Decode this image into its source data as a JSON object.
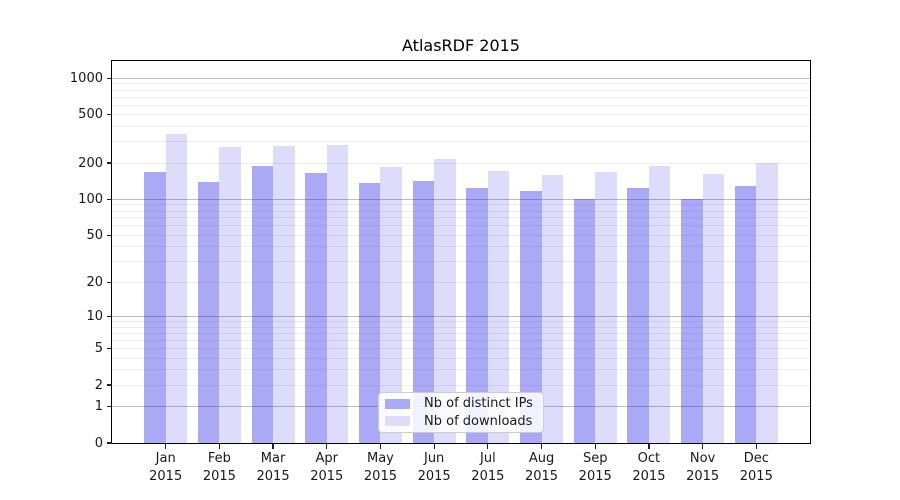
{
  "chart_data": {
    "type": "bar",
    "title": "AtlasRDF 2015",
    "categories": [
      "Jan",
      "Feb",
      "Mar",
      "Apr",
      "May",
      "Jun",
      "Jul",
      "Aug",
      "Sep",
      "Oct",
      "Nov",
      "Dec"
    ],
    "x_year": "2015",
    "series": [
      {
        "name": "Nb of distinct IPs",
        "values": [
          170,
          140,
          190,
          166,
          137,
          141,
          125,
          118,
          101,
          124,
          101,
          128
        ],
        "bar_color": "rgba(30,30,230,0.38)",
        "legend_color": "#aaaaf5"
      },
      {
        "name": "Nb of downloads",
        "values": [
          347,
          270,
          276,
          280,
          186,
          218,
          172,
          158,
          170,
          190,
          162,
          200
        ],
        "bar_color": "rgba(30,30,230,0.15)",
        "legend_color": "#ddddfb"
      }
    ],
    "yscale": "log1p",
    "ylim": [
      0,
      1388
    ],
    "yticks": [
      0,
      1,
      2,
      5,
      10,
      20,
      50,
      100,
      200,
      500,
      1000
    ],
    "grid": {
      "major": [
        1,
        10,
        100,
        1000
      ],
      "minor": [
        2,
        3,
        4,
        5,
        6,
        7,
        8,
        9,
        20,
        30,
        40,
        50,
        60,
        70,
        80,
        90,
        200,
        300,
        400,
        500,
        600,
        700,
        800,
        900
      ],
      "major_color": "#bdbdbd",
      "minor_color": "#ededed"
    },
    "legend_position": "lower center inside plot"
  },
  "style": {
    "background": "#ffffff",
    "text_color": "#1a1a1a",
    "spine_color": "#000000"
  }
}
